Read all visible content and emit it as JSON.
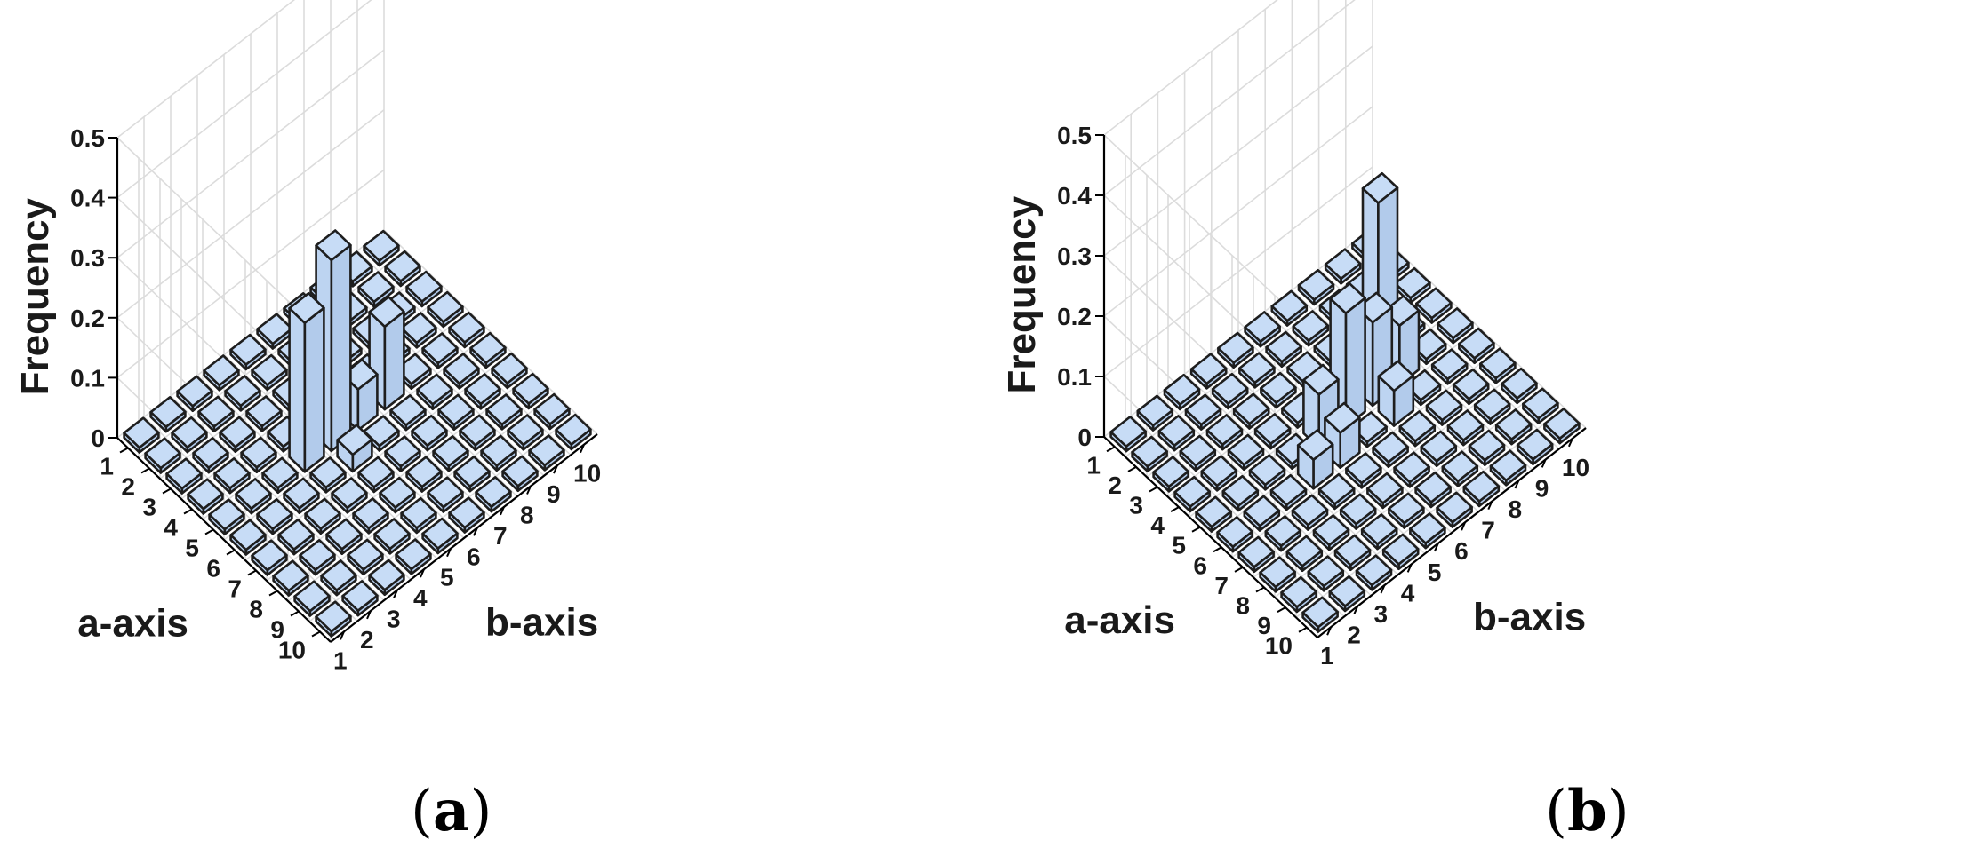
{
  "colors": {
    "bar_top": "#c7dcf6",
    "bar_left": "#b2cbeb",
    "bar_right": "#bdd4f1",
    "bar_edge": "#1e1e1e",
    "grid": "#dcdcdc"
  },
  "chart_data": [
    {
      "type": "bar3d",
      "panel_label": "(a)",
      "panel_letter": "a",
      "xlabel": "a-axis",
      "ylabel": "b-axis",
      "zlabel": "Frequency",
      "zlim": [
        0,
        0.5
      ],
      "z_ticks": [
        "0",
        "0.1",
        "0.2",
        "0.3",
        "0.4",
        "0.5"
      ],
      "a_ticks": [
        "1",
        "2",
        "3",
        "4",
        "5",
        "6",
        "7",
        "8",
        "9",
        "10"
      ],
      "b_ticks": [
        "1",
        "2",
        "3",
        "4",
        "5",
        "6",
        "7",
        "8",
        "9",
        "10"
      ],
      "grid": true,
      "cells": [
        {
          "a": 5,
          "b": 4,
          "z": 0.24
        },
        {
          "a": 5,
          "b": 5,
          "z": 0.31
        },
        {
          "a": 6,
          "b": 5,
          "z": 0.02
        },
        {
          "a": 5,
          "b": 6,
          "z": 0.06
        },
        {
          "a": 5,
          "b": 7,
          "z": 0.13
        }
      ]
    },
    {
      "type": "bar3d",
      "panel_label": "(b)",
      "panel_letter": "b",
      "xlabel": "a-axis",
      "ylabel": "b-axis",
      "zlabel": "Frequency",
      "zlim": [
        0,
        0.5
      ],
      "z_ticks": [
        "0",
        "0.1",
        "0.2",
        "0.3",
        "0.4",
        "0.5"
      ],
      "a_ticks": [
        "1",
        "2",
        "3",
        "4",
        "5",
        "6",
        "7",
        "8",
        "9",
        "10"
      ],
      "b_ticks": [
        "1",
        "2",
        "3",
        "4",
        "5",
        "6",
        "7",
        "8",
        "9",
        "10"
      ],
      "grid": true,
      "cells": [
        {
          "a": 5,
          "b": 5,
          "z": 0.08
        },
        {
          "a": 6,
          "b": 4,
          "z": 0.04
        },
        {
          "a": 6,
          "b": 5,
          "z": 0.05
        },
        {
          "a": 5,
          "b": 6,
          "z": 0.18
        },
        {
          "a": 5,
          "b": 7,
          "z": 0.13
        },
        {
          "a": 6,
          "b": 7,
          "z": 0.05
        },
        {
          "a": 4,
          "b": 8,
          "z": 0.26
        },
        {
          "a": 5,
          "b": 8,
          "z": 0.09
        }
      ]
    }
  ]
}
